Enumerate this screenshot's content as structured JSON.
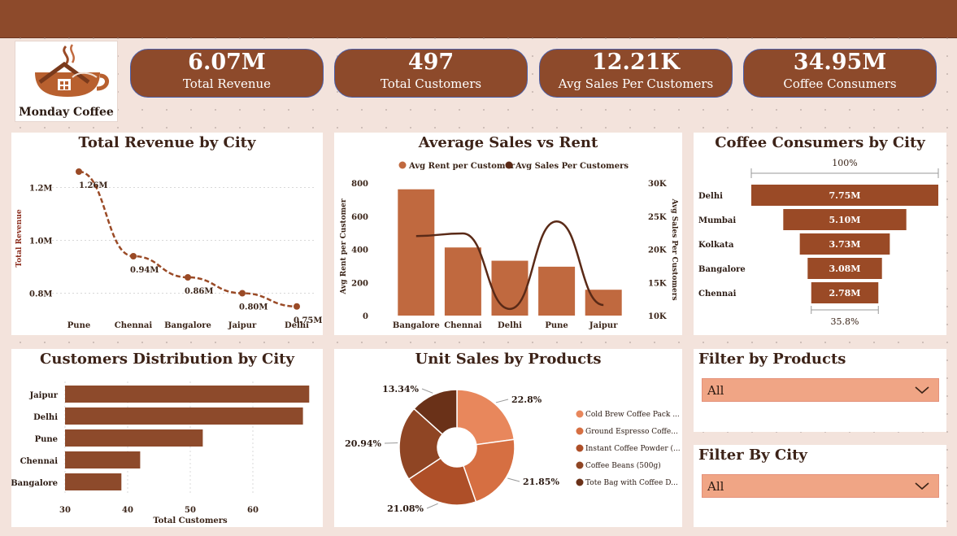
{
  "brand": {
    "name": "Monday Coffee",
    "logo_icon": "coffee-cup-house-icon"
  },
  "kpis": [
    {
      "value": "6.07M",
      "label": "Total Revenue"
    },
    {
      "value": "497",
      "label": "Total Customers"
    },
    {
      "value": "12.21K",
      "label": "Avg Sales Per Customers"
    },
    {
      "value": "34.95M",
      "label": "Coffee Consumers"
    }
  ],
  "panels": {
    "revenue": {
      "title": "Total Revenue by City"
    },
    "avg_rent": {
      "title": "Average Sales vs Rent"
    },
    "consumers": {
      "title": "Coffee Consumers by City"
    },
    "customers": {
      "title": "Customers Distribution by City"
    },
    "unit_sales": {
      "title": "Unit Sales by Products"
    }
  },
  "filters": {
    "products": {
      "title": "Filter by Products",
      "value": "All"
    },
    "city": {
      "title": "Filter By City",
      "value": "All"
    }
  },
  "colors": {
    "brand": "#8d4a2b",
    "bar": "#c0693f",
    "line": "#5a2a17",
    "background": "#f3e3dc",
    "dropdown": "#f0a585"
  },
  "chart_data": [
    {
      "type": "line",
      "title": "Total Revenue by City",
      "ylabel": "Total Revenue",
      "categories": [
        "Pune",
        "Chennai",
        "Bangalore",
        "Jaipur",
        "Delhi"
      ],
      "values": [
        1.26,
        0.94,
        0.86,
        0.8,
        0.75
      ],
      "data_labels": [
        "1.26M",
        "0.94M",
        "0.86M",
        "0.80M",
        "0.75M"
      ],
      "y_ticks": [
        "0.8M",
        "1.0M",
        "1.2M"
      ],
      "ylim": [
        0.7,
        1.3
      ],
      "grid": true
    },
    {
      "type": "bar",
      "title": "Average Sales vs Rent",
      "categories": [
        "Bangalore",
        "Chennai",
        "Delhi",
        "Pune",
        "Jaipur"
      ],
      "ylabel": "Avg Rent per Customer",
      "y2label": "Avg Sales Per Customers",
      "y_ticks": [
        "0",
        "200",
        "400",
        "600",
        "800"
      ],
      "y2_ticks": [
        "10K",
        "15K",
        "20K",
        "25K",
        "30K"
      ],
      "ylim": [
        0,
        800
      ],
      "y2lim": [
        10000,
        30000
      ],
      "legend_position": "top",
      "series": [
        {
          "name": "Avg Rent per Customer",
          "type": "bar",
          "values": [
            762,
            411,
            331,
            295,
            156
          ]
        },
        {
          "name": "Avg Sales Per Customers",
          "type": "line",
          "values": [
            22000,
            22400,
            11000,
            24200,
            11600
          ]
        }
      ]
    },
    {
      "type": "bar",
      "subtype": "funnel",
      "title": "Coffee Consumers by City",
      "categories": [
        "Delhi",
        "Mumbai",
        "Kolkata",
        "Bangalore",
        "Chennai"
      ],
      "values": [
        7.75,
        5.1,
        3.73,
        3.08,
        2.78
      ],
      "data_labels": [
        "7.75M",
        "5.10M",
        "3.73M",
        "3.08M",
        "2.78M"
      ],
      "top_label": "100%",
      "bottom_label": "35.8%"
    },
    {
      "type": "bar",
      "orientation": "horizontal",
      "title": "Customers Distribution by City",
      "xlabel": "Total Customers",
      "categories": [
        "Jaipur",
        "Delhi",
        "Pune",
        "Chennai",
        "Bangalore"
      ],
      "values": [
        69,
        68,
        52,
        42,
        39
      ],
      "x_ticks": [
        "30",
        "40",
        "50",
        "60"
      ],
      "xlim": [
        30,
        70
      ],
      "grid": true
    },
    {
      "type": "pie",
      "subtype": "donut",
      "title": "Unit Sales by Products",
      "legend_position": "right",
      "series": [
        {
          "name": "Cold Brew Coffee Pack ...",
          "value": 22.8,
          "label": "22.8%",
          "color": "#e8875c"
        },
        {
          "name": "Ground Espresso Coffe...",
          "value": 21.85,
          "label": "21.85%",
          "color": "#d66f42"
        },
        {
          "name": "Instant Coffee Powder (...",
          "value": 21.08,
          "label": "21.08%",
          "color": "#ae4f28"
        },
        {
          "name": "Coffee Beans (500g)",
          "value": 20.94,
          "label": "20.94%",
          "color": "#8f4524"
        },
        {
          "name": "Tote Bag with Coffee D...",
          "value": 13.34,
          "label": "13.34%",
          "color": "#6a3118"
        }
      ]
    }
  ]
}
